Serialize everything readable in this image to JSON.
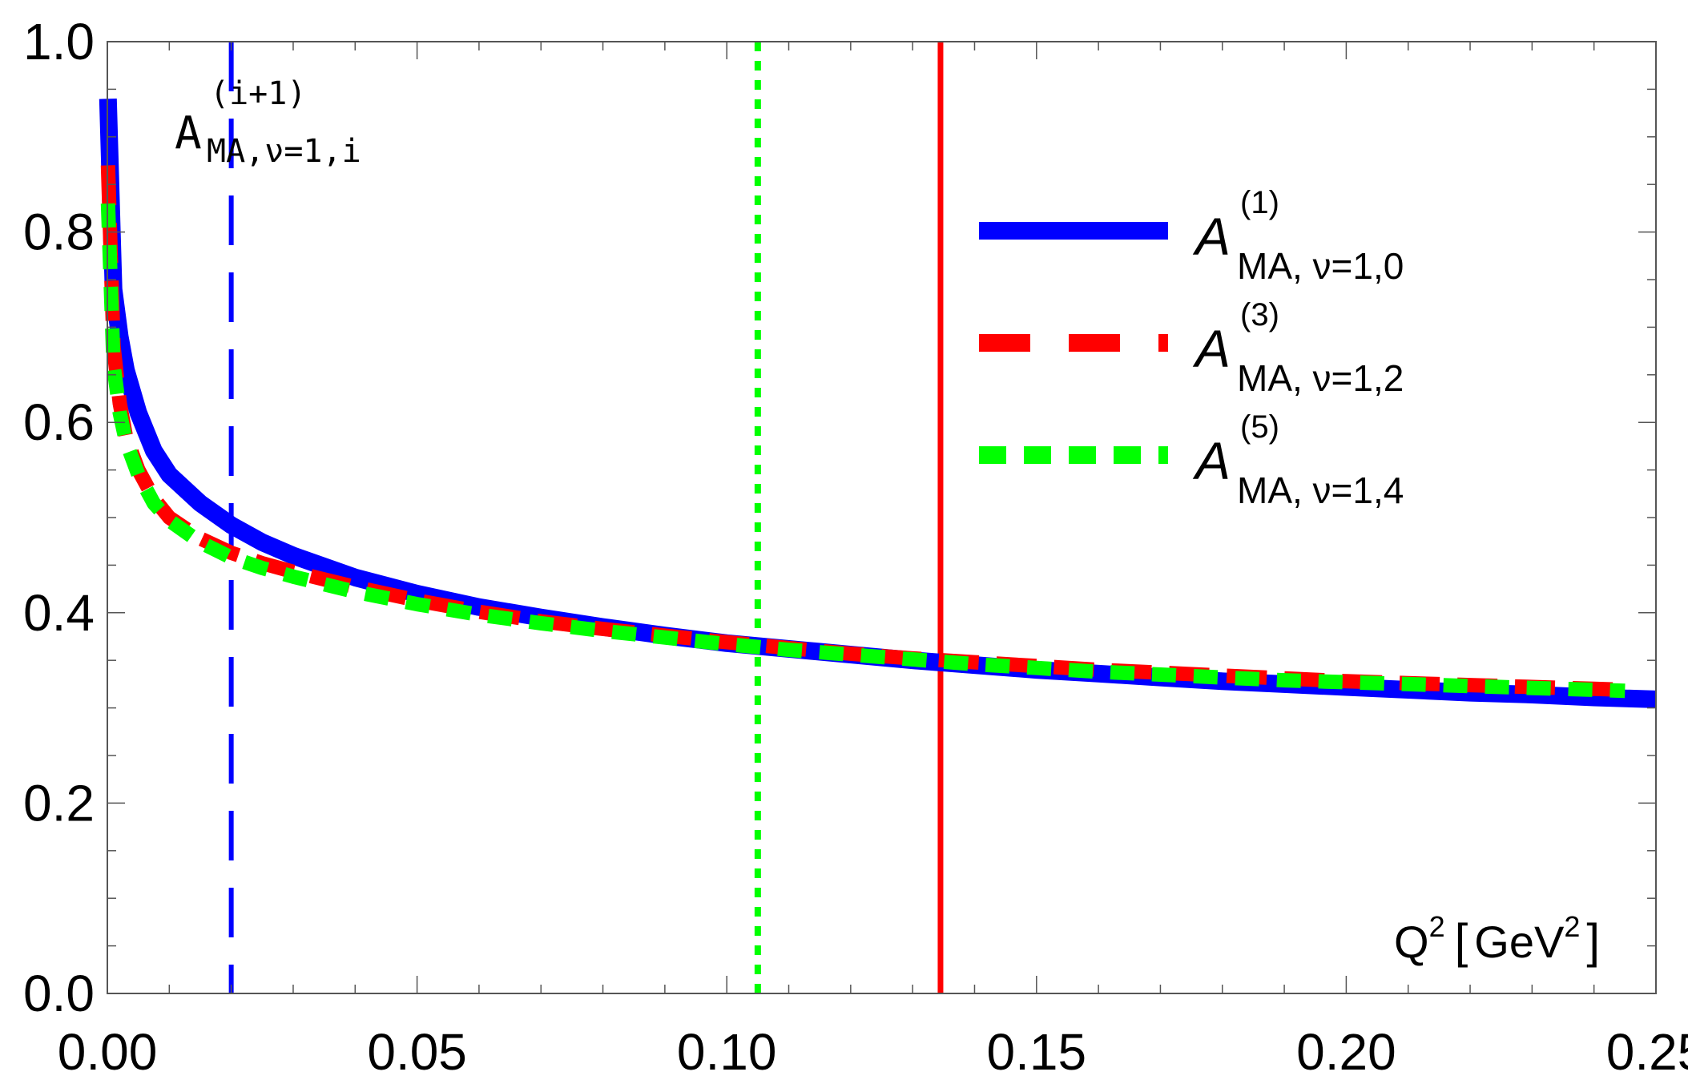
{
  "chart_data": {
    "type": "line",
    "title": "",
    "xlabel": "Q² [GeV²]",
    "ylabel": "",
    "xlim": [
      0.0,
      0.25
    ],
    "ylim": [
      0.0,
      1.0
    ],
    "grid": false,
    "legend_position": "top-right",
    "xticks": [
      {
        "value": 0.0,
        "label": "0.00"
      },
      {
        "value": 0.05,
        "label": "0.05"
      },
      {
        "value": 0.1,
        "label": "0.10"
      },
      {
        "value": 0.15,
        "label": "0.15"
      },
      {
        "value": 0.2,
        "label": "0.20"
      },
      {
        "value": 0.25,
        "label": "0.25"
      }
    ],
    "yticks": [
      {
        "value": 0.0,
        "label": "0.0"
      },
      {
        "value": 0.2,
        "label": "0.2"
      },
      {
        "value": 0.4,
        "label": "0.4"
      },
      {
        "value": 0.6,
        "label": "0.6"
      },
      {
        "value": 0.8,
        "label": "0.8"
      },
      {
        "value": 1.0,
        "label": "1.0"
      }
    ],
    "annotation": {
      "base": "A",
      "subscript": "MA,ν=1,i",
      "superscript": "(i+1)"
    },
    "xlabel_parts": {
      "base": "Q",
      "base_sup": "2",
      "unit_open": "[",
      "unit": "GeV",
      "unit_sup": "2",
      "unit_close": "]"
    },
    "series": [
      {
        "name_base": "A",
        "name_sup": "(1)",
        "name_sub": "MA, ν=1,0",
        "color": "#0000ff",
        "style": "solid",
        "x": [
          0.0001,
          0.001,
          0.002,
          0.003,
          0.005,
          0.0075,
          0.01,
          0.015,
          0.02,
          0.025,
          0.03,
          0.04,
          0.05,
          0.06,
          0.07,
          0.08,
          0.09,
          0.1,
          0.11,
          0.12,
          0.13,
          0.14,
          0.15,
          0.16,
          0.17,
          0.18,
          0.19,
          0.2,
          0.21,
          0.22,
          0.23,
          0.24,
          0.25
        ],
        "y": [
          0.94,
          0.74,
          0.69,
          0.655,
          0.61,
          0.57,
          0.545,
          0.515,
          0.492,
          0.474,
          0.46,
          0.437,
          0.42,
          0.406,
          0.395,
          0.385,
          0.376,
          0.368,
          0.362,
          0.356,
          0.35,
          0.345,
          0.34,
          0.336,
          0.332,
          0.328,
          0.325,
          0.322,
          0.319,
          0.316,
          0.314,
          0.311,
          0.309
        ]
      },
      {
        "name_base": "A",
        "name_sup": "(3)",
        "name_sub": "MA, ν=1,2",
        "color": "#ff0000",
        "style": "dashed",
        "x": [
          0.0001,
          0.001,
          0.002,
          0.003,
          0.005,
          0.0075,
          0.01,
          0.015,
          0.02,
          0.025,
          0.03,
          0.04,
          0.05,
          0.06,
          0.07,
          0.08,
          0.09,
          0.1,
          0.11,
          0.12,
          0.13,
          0.14,
          0.15,
          0.16,
          0.17,
          0.18,
          0.19,
          0.2,
          0.21,
          0.22,
          0.23,
          0.24,
          0.245
        ],
        "y": [
          0.87,
          0.68,
          0.62,
          0.585,
          0.55,
          0.52,
          0.5,
          0.478,
          0.463,
          0.452,
          0.443,
          0.427,
          0.413,
          0.401,
          0.391,
          0.383,
          0.376,
          0.369,
          0.363,
          0.357,
          0.352,
          0.348,
          0.344,
          0.34,
          0.337,
          0.334,
          0.331,
          0.328,
          0.326,
          0.324,
          0.322,
          0.32,
          0.319
        ]
      },
      {
        "name_base": "A",
        "name_sup": "(5)",
        "name_sub": "MA, ν=1,4",
        "color": "#00ff00",
        "style": "dotted",
        "x": [
          0.0001,
          0.001,
          0.002,
          0.003,
          0.005,
          0.0075,
          0.01,
          0.015,
          0.02,
          0.025,
          0.03,
          0.04,
          0.05,
          0.06,
          0.07,
          0.08,
          0.09,
          0.1,
          0.11,
          0.12,
          0.13,
          0.14,
          0.15,
          0.16,
          0.17,
          0.18,
          0.19,
          0.2,
          0.21,
          0.22,
          0.23,
          0.24,
          0.245
        ],
        "y": [
          0.83,
          0.66,
          0.61,
          0.58,
          0.545,
          0.515,
          0.497,
          0.474,
          0.458,
          0.447,
          0.438,
          0.422,
          0.409,
          0.398,
          0.389,
          0.381,
          0.374,
          0.367,
          0.361,
          0.356,
          0.351,
          0.346,
          0.342,
          0.338,
          0.335,
          0.332,
          0.329,
          0.327,
          0.325,
          0.323,
          0.321,
          0.319,
          0.318
        ]
      }
    ],
    "vertical_lines": [
      {
        "x": 0.02,
        "color": "#0000ff",
        "style": "dashed"
      },
      {
        "x": 0.105,
        "color": "#00ff00",
        "style": "dotted"
      },
      {
        "x": 0.1345,
        "color": "#ff0000",
        "style": "solid"
      }
    ]
  }
}
